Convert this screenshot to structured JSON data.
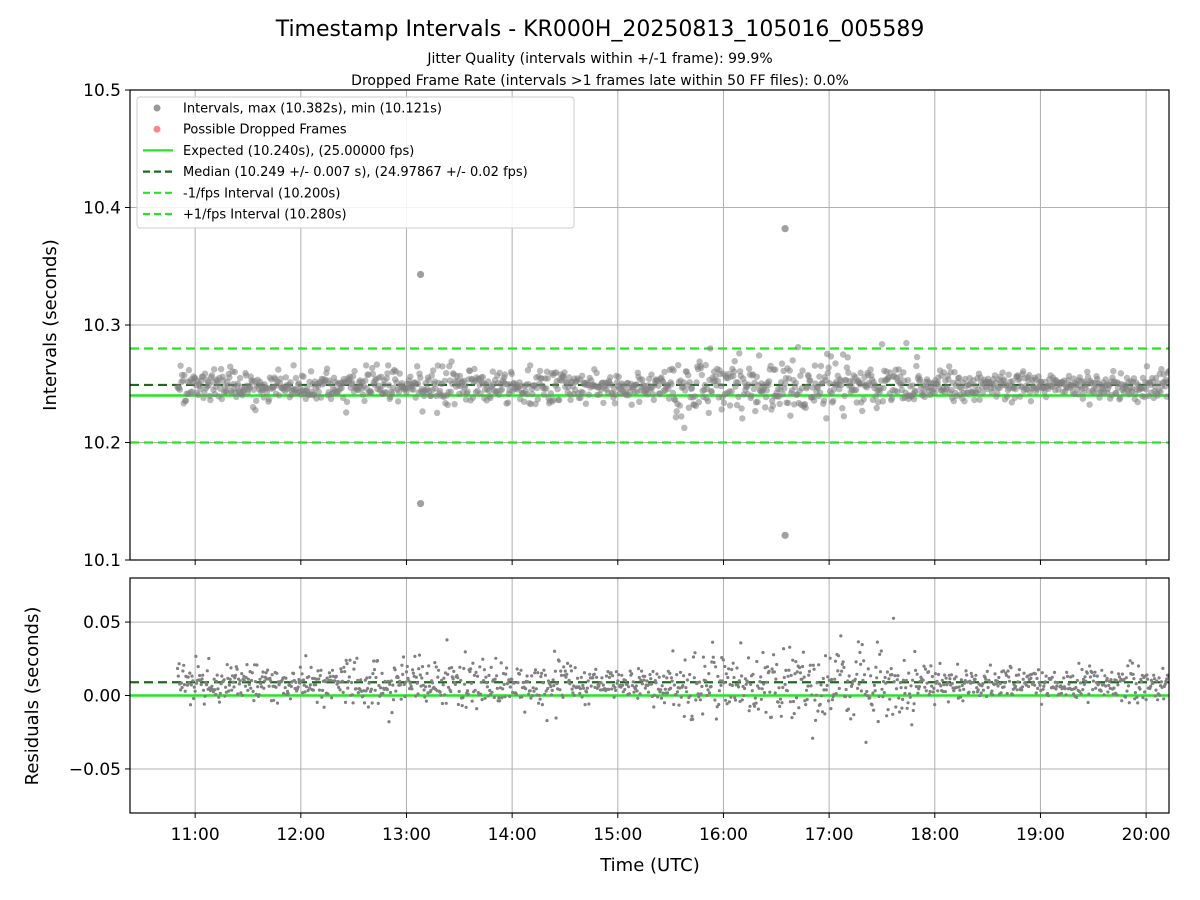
{
  "chart_data": [
    {
      "type": "scatter",
      "title": "Timestamp Intervals - KR000H_20250813_105016_005589",
      "subtitle_lines": [
        "Jitter Quality (intervals within +/-1 frame): 99.9%",
        "Dropped Frame Rate (intervals >1 frames late within 50 FF files): 0.0%"
      ],
      "xlabel": "",
      "ylabel": "Intervals (seconds)",
      "xlim": [
        "10:23",
        "20:13"
      ],
      "ylim": [
        10.1,
        10.5
      ],
      "yticks": [
        "10.1",
        "10.2",
        "10.3",
        "10.4",
        "10.5"
      ],
      "grid": true,
      "legend_placement": "upper-left",
      "legend": [
        {
          "label": "Intervals, max (10.382s), min (10.121s)",
          "marker": "dot",
          "color": "#808080"
        },
        {
          "label": "Possible Dropped Frames",
          "marker": "dot",
          "color": "#ff6666"
        },
        {
          "label": "Expected (10.240s), (25.00000 fps)",
          "marker": "solid",
          "color": "#22e622"
        },
        {
          "label": "Median (10.249 +/- 0.007 s), (24.97867 +/- 0.02 fps)",
          "marker": "dashed",
          "color": "#1a6b1a"
        },
        {
          "label": "-1/fps Interval (10.200s)",
          "marker": "dashed",
          "color": "#22e622"
        },
        {
          "label": "+1/fps Interval (10.280s)",
          "marker": "dashed",
          "color": "#22e622"
        }
      ],
      "lines": {
        "expected": 10.24,
        "median": 10.249,
        "minus_fps": 10.2,
        "plus_fps": 10.28
      },
      "series": {
        "time_range": [
          "10:50",
          "20:13"
        ],
        "center": 10.248,
        "typical_spread": 0.007,
        "outliers": [
          {
            "time": "13:08",
            "value": 10.343
          },
          {
            "time": "13:08",
            "value": 10.148
          },
          {
            "time": "16:35",
            "value": 10.382
          },
          {
            "time": "16:35",
            "value": 10.121
          }
        ]
      }
    },
    {
      "type": "scatter",
      "xlabel": "Time (UTC)",
      "ylabel": "Residuals (seconds)",
      "xlim": [
        "10:23",
        "20:13"
      ],
      "ylim": [
        -0.08,
        0.08
      ],
      "yticks": [
        "−0.05",
        "0.00",
        "0.05"
      ],
      "xticks": [
        "11:00",
        "12:00",
        "13:00",
        "14:00",
        "15:00",
        "16:00",
        "17:00",
        "18:00",
        "19:00",
        "20:00"
      ],
      "grid": true,
      "lines": {
        "zero": 0.0,
        "median_offset": 0.009
      },
      "series": {
        "time_range": [
          "10:50",
          "20:13"
        ],
        "center": 0.008,
        "typical_spread": 0.007
      }
    }
  ],
  "colors": {
    "points": "#808080",
    "expected": "#22e622",
    "median": "#1a6b1a",
    "grid": "#b0b0b0"
  }
}
